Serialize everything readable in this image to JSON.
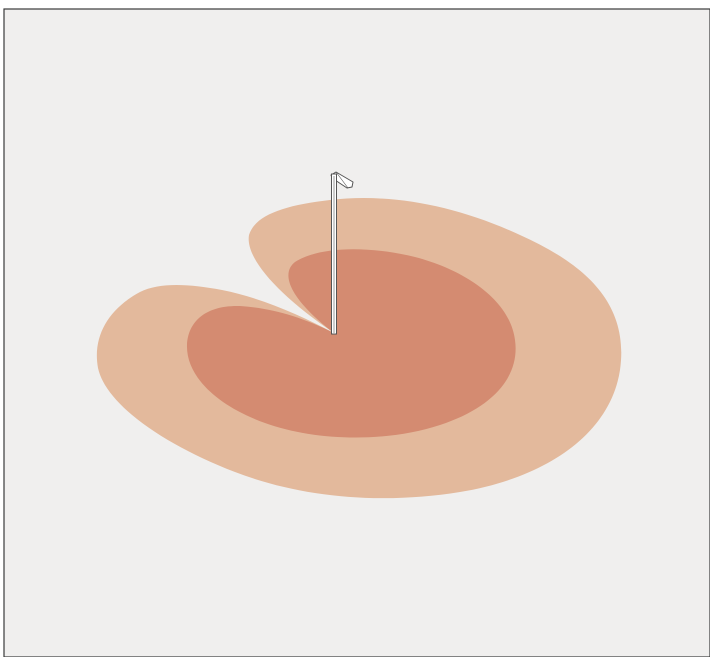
{
  "scene": {
    "background_color": "#f0efee",
    "frame_color": "#3a3a3a",
    "outer_zone_color": "#e3b99c",
    "inner_zone_color": "#d48b71",
    "pole_fill_color": "#ffffff",
    "pole_outline_color": "#555555"
  }
}
